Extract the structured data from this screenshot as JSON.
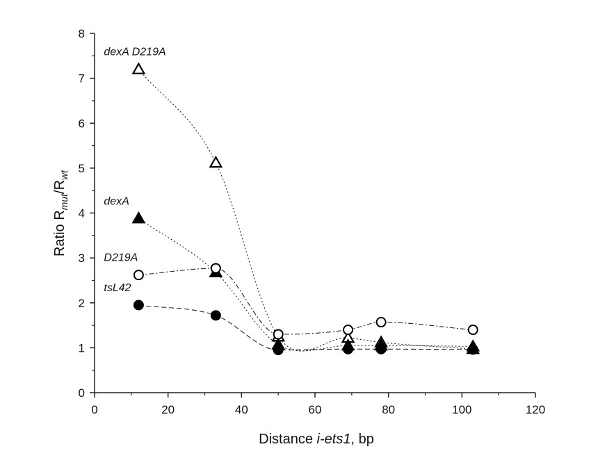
{
  "chart_data": {
    "type": "scatter",
    "title": "",
    "xlabel": {
      "prefix": "Distance ",
      "italic": "i-ets1",
      "suffix": ", bp"
    },
    "ylabel": {
      "prefix": "Ratio R",
      "sub1": "mut",
      "mid": "/R",
      "sub2": "wt"
    },
    "xlim": [
      0,
      120
    ],
    "ylim": [
      0,
      8
    ],
    "x_ticks": [
      0,
      20,
      40,
      60,
      80,
      100,
      120
    ],
    "y_ticks": [
      0,
      1,
      2,
      3,
      4,
      5,
      6,
      7,
      8
    ],
    "grid": false,
    "series": [
      {
        "name": "dexA D219A",
        "marker": "open-triangle",
        "line": "dotted",
        "x": [
          12,
          33,
          50,
          69,
          78,
          103
        ],
        "y": [
          7.2,
          5.12,
          1.25,
          1.22,
          1.12,
          0.97
        ]
      },
      {
        "name": "dexA",
        "marker": "filled-triangle",
        "line": "dotted",
        "x": [
          12,
          33,
          50,
          69,
          78,
          103
        ],
        "y": [
          3.88,
          2.68,
          1.07,
          1.05,
          1.05,
          1.03
        ]
      },
      {
        "name": "D219A",
        "marker": "open-circle",
        "line": "dash-dot",
        "x": [
          12,
          33,
          50,
          69,
          78,
          103
        ],
        "y": [
          2.62,
          2.77,
          1.3,
          1.4,
          1.57,
          1.4
        ]
      },
      {
        "name": "tsL42",
        "marker": "filled-circle",
        "line": "dashed",
        "x": [
          12,
          33,
          50,
          69,
          78,
          103
        ],
        "y": [
          1.95,
          1.72,
          0.95,
          0.97,
          0.97,
          0.96
        ]
      }
    ]
  }
}
